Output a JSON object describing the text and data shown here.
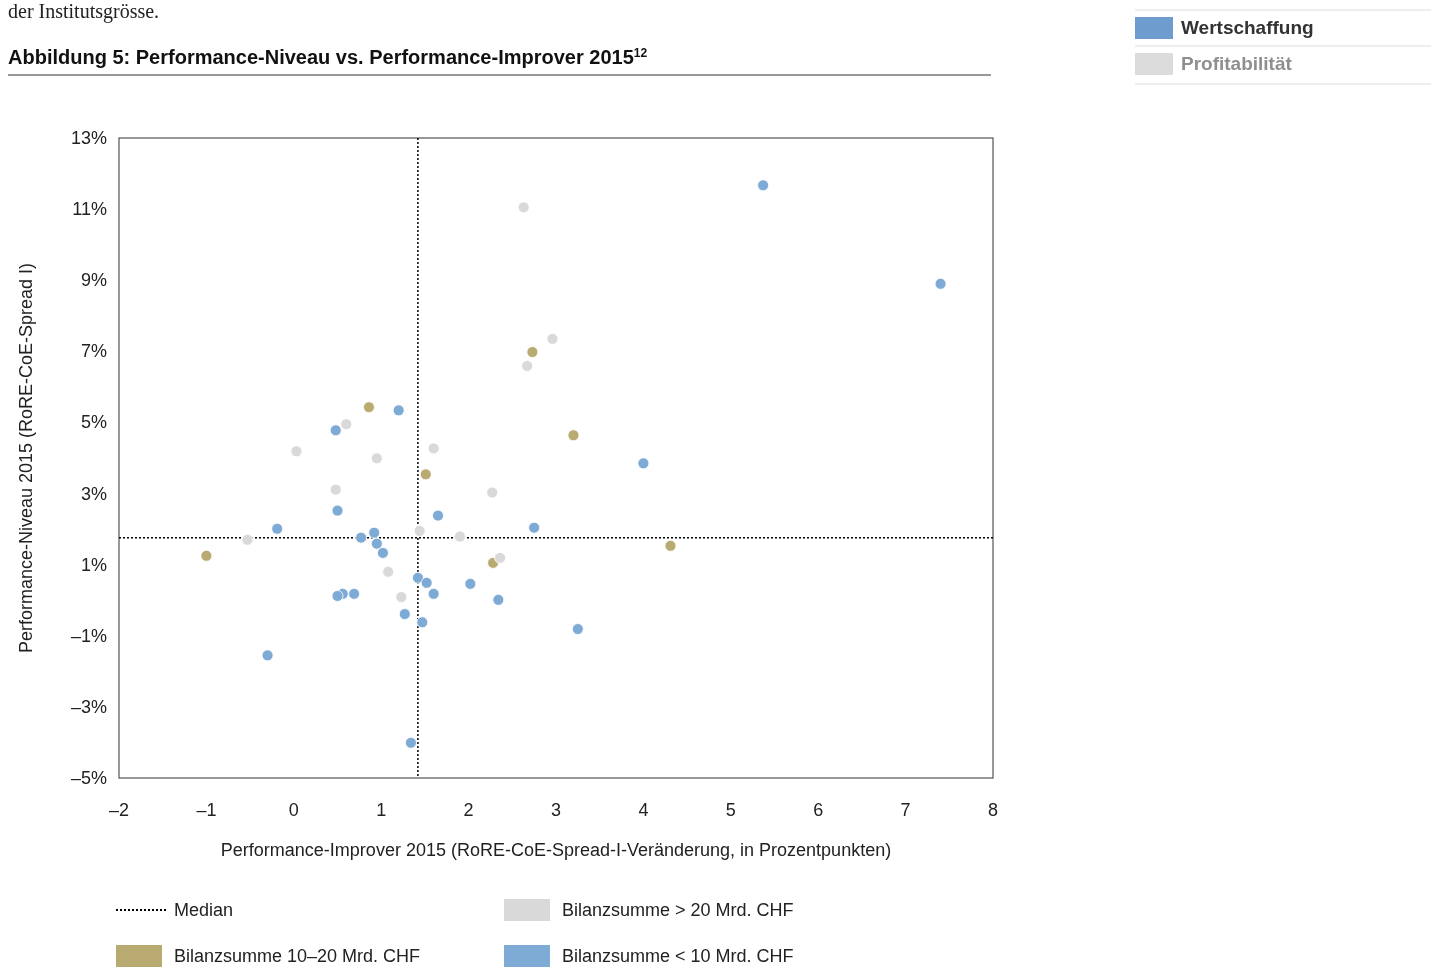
{
  "chart_data": {
    "type": "scatter",
    "title": "Abbildung 5: Performance-Niveau vs. Performance-Improver 2015$^{12}$",
    "xlabel": "Performance-Improver 2015 (RoRE-CoE-Spread-I-Veränderung, in Prozentpunkten)",
    "ylabel": "Performance-Niveau 2015 (RoRE-CoE-Spread I)",
    "annotations": [
      "der Institutsgrösse.",
      "Wertschaffung",
      "Profitabilität"
    ],
    "xlim": [
      -2,
      8
    ],
    "xticks": [
      {
        "value": -2,
        "label": "–2"
      },
      {
        "value": -1,
        "label": "–1"
      },
      0,
      1,
      2,
      3,
      4,
      5,
      6,
      7,
      8
    ],
    "ylim": [
      -5,
      13
    ],
    "yticks": [
      {
        "value": -5,
        "label": "–5%"
      },
      {
        "value": -3,
        "label": "–3%"
      },
      {
        "value": -1,
        "label": "–1%"
      },
      {
        "value": 1,
        "label": "1%"
      },
      {
        "value": 3,
        "label": "3%"
      },
      {
        "value": 5,
        "label": "5%"
      },
      {
        "value": 7,
        "label": "7%"
      },
      {
        "value": 9,
        "label": "9%"
      },
      {
        "value": 11,
        "label": "11%"
      },
      {
        "value": 13,
        "label": "13%"
      }
    ],
    "grid": false,
    "legend": "bottom",
    "marker": "circle",
    "ref_lines": [
      {
        "axis": "x",
        "value": 1.42,
        "label": "Median",
        "line_style": "dotted",
        "color": "#000000"
      },
      {
        "axis": "y",
        "value": 1.76,
        "label": null,
        "line_style": "dotted",
        "color": "#000000"
      }
    ],
    "series": [
      {
        "name": "Bilanzsumme 10–20 Mrd. CHF",
        "color": "#b9aa72",
        "x": [
          0.86,
          2.73,
          3.2,
          1.51,
          -1.0,
          4.31,
          2.28
        ],
        "values": [
          5.43,
          6.98,
          4.64,
          3.54,
          1.25,
          1.53,
          1.05
        ]
      },
      {
        "name": "Bilanzsumme > 20 Mrd. CHF",
        "color": "#d9d9d9",
        "x": [
          2.63,
          2.96,
          2.67,
          0.6,
          0.03,
          1.6,
          0.95,
          0.48,
          2.27,
          1.44,
          1.9,
          -0.53,
          2.36,
          1.08,
          1.23
        ],
        "values": [
          11.05,
          7.35,
          6.59,
          4.95,
          4.19,
          4.27,
          3.99,
          3.11,
          3.03,
          1.95,
          1.79,
          1.7,
          1.19,
          0.8,
          0.09
        ]
      },
      {
        "name": "Bilanzsumme < 10 Mrd. CHF",
        "color": "#7eaad6",
        "x": [
          5.37,
          7.4,
          1.2,
          0.48,
          4.0,
          0.5,
          1.65,
          -0.19,
          2.75,
          0.92,
          0.77,
          0.95,
          1.02,
          1.42,
          1.52,
          2.02,
          0.56,
          0.5,
          0.69,
          1.6,
          2.34,
          1.27,
          1.47,
          3.25,
          -0.3,
          1.34
        ],
        "values": [
          11.67,
          8.9,
          5.34,
          4.78,
          3.85,
          2.52,
          2.38,
          2.01,
          2.04,
          1.9,
          1.76,
          1.59,
          1.33,
          0.63,
          0.49,
          0.46,
          0.18,
          0.12,
          0.18,
          0.18,
          0.01,
          -0.39,
          -0.62,
          -0.81,
          -1.55,
          -4.01
        ]
      }
    ]
  }
}
